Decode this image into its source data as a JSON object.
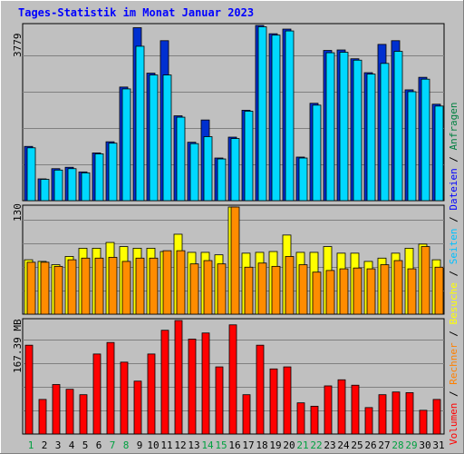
{
  "title": "Tages-Statistik im Monat Januar 2023",
  "legend": {
    "separator": " / ",
    "items": [
      {
        "label": "Anfragen",
        "color": "#008040"
      },
      {
        "label": "Dateien",
        "color": "#0000ff"
      },
      {
        "label": "Seiten",
        "color": "#00c0ff"
      },
      {
        "label": "Besuche",
        "color": "#ffff00"
      },
      {
        "label": "Rechner",
        "color": "#ff8000"
      },
      {
        "label": "Volumen",
        "color": "#ff0000"
      }
    ]
  },
  "axis_labels": {
    "top": "3779",
    "middle": "130",
    "bottom": "167.39 MB"
  },
  "colors": {
    "background": "#c0c0c0",
    "files": "#0030d0",
    "pages": "#00d8ff",
    "visits": "#ffff00",
    "hosts": "#ff8c00",
    "volume": "#ff0000",
    "weekend_label": "#00a040",
    "day_label": "#000000"
  },
  "chart_data": {
    "type": "bar",
    "x": [
      "1",
      "2",
      "3",
      "4",
      "5",
      "6",
      "7",
      "8",
      "9",
      "10",
      "11",
      "12",
      "13",
      "14",
      "15",
      "16",
      "17",
      "18",
      "19",
      "20",
      "21",
      "22",
      "23",
      "24",
      "25",
      "26",
      "27",
      "28",
      "29",
      "30",
      "31"
    ],
    "weekend_days": [
      "1",
      "7",
      "8",
      "14",
      "15",
      "21",
      "22",
      "28",
      "29"
    ],
    "panels": [
      {
        "id": "requests",
        "ymax": 3779,
        "series": [
          {
            "name": "Dateien",
            "values": [
              1170,
              470,
              690,
              720,
              620,
              1030,
              1270,
              2450,
              3730,
              2750,
              3450,
              1830,
              1260,
              1740,
              920,
              1370,
              1950,
              3780,
              3600,
              3700,
              940,
              2100,
              3240,
              3250,
              3060,
              2760,
              3370,
              3450,
              2390,
              2660,
              2080
            ]
          },
          {
            "name": "Seiten",
            "values": [
              1140,
              460,
              660,
              690,
              600,
              1010,
              1240,
              2410,
              3330,
              2710,
              2710,
              1800,
              1230,
              1380,
              900,
              1340,
              1930,
              3750,
              3570,
              3660,
              920,
              2060,
              3190,
              3200,
              3030,
              2730,
              2960,
              3220,
              2350,
              2620,
              2040
            ]
          }
        ]
      },
      {
        "id": "visits",
        "ymax": 130,
        "series": [
          {
            "name": "Besuche",
            "values": [
              66,
              64,
              60,
              70,
              80,
              80,
              87,
              82,
              80,
              80,
              76,
              97,
              75,
              75,
              72,
              130,
              74,
              75,
              76,
              96,
              75,
              75,
              82,
              74,
              74,
              64,
              68,
              74,
              80,
              85,
              66
            ]
          },
          {
            "name": "Rechner",
            "values": [
              63,
              63,
              58,
              66,
              68,
              68,
              69,
              64,
              68,
              68,
              77,
              77,
              61,
              65,
              61,
              131,
              57,
              62,
              58,
              70,
              60,
              51,
              53,
              55,
              56,
              55,
              60,
              65,
              55,
              82,
              57
            ]
          }
        ]
      },
      {
        "id": "volume",
        "ymax": 167.39,
        "series": [
          {
            "name": "Volumen",
            "values": [
              131,
              51,
              73,
              66,
              58,
              118,
              135,
              106,
              78,
              118,
              153,
              172,
              140,
              149,
              99,
              161,
              58,
              131,
              96,
              99,
              46,
              41,
              71,
              80,
              72,
              39,
              58,
              62,
              61,
              35,
              51
            ]
          }
        ]
      }
    ]
  }
}
